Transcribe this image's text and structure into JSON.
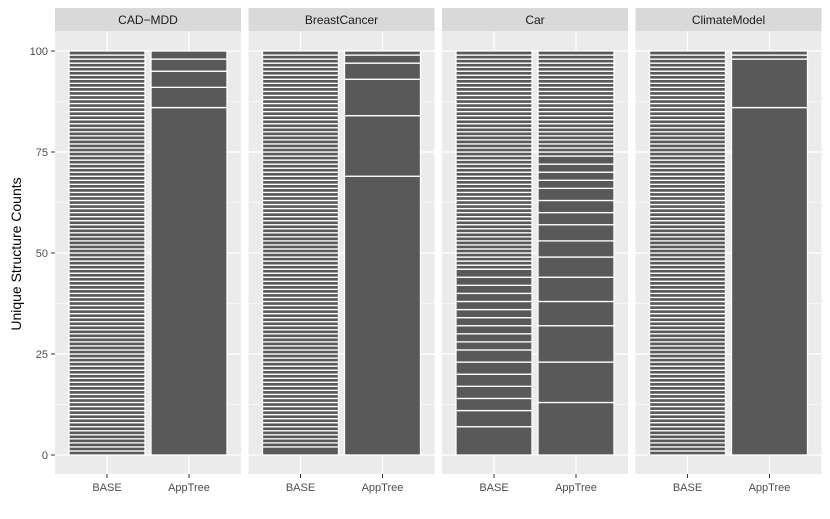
{
  "chart_data": {
    "type": "bar",
    "ylabel": "Unique Structure Counts",
    "xlabel": "",
    "ylim": [
      0,
      100
    ],
    "yticks": [
      0,
      25,
      50,
      75,
      100
    ],
    "categories": [
      "BASE",
      "AppTree"
    ],
    "grid": true,
    "colors": {
      "panel": "#ebebeb",
      "strip": "#d9d9d9",
      "bar": "#595959",
      "separator": "#ffffff",
      "grid": "#ffffff"
    },
    "panels": [
      {
        "title": "CAD−MDD",
        "bars": [
          {
            "category": "BASE",
            "total": 100,
            "segment_tops": [
              1,
              2,
              3,
              4,
              5,
              6,
              7,
              8,
              9,
              10,
              11,
              12,
              13,
              14,
              15,
              16,
              17,
              18,
              19,
              20,
              21,
              22,
              23,
              24,
              25,
              26,
              27,
              28,
              29,
              30,
              31,
              32,
              33,
              34,
              35,
              36,
              37,
              38,
              39,
              40,
              41,
              42,
              43,
              44,
              45,
              46,
              47,
              48,
              49,
              50,
              51,
              52,
              53,
              54,
              55,
              56,
              57,
              58,
              59,
              60,
              61,
              62,
              63,
              64,
              65,
              66,
              67,
              68,
              69,
              70,
              71,
              72,
              73,
              74,
              75,
              76,
              77,
              78,
              79,
              80,
              81,
              82,
              83,
              84,
              85,
              86,
              87,
              88,
              89,
              90,
              91,
              92,
              93,
              94,
              95,
              96,
              97,
              98,
              99,
              100
            ]
          },
          {
            "category": "AppTree",
            "total": 100,
            "segment_tops": [
              86,
              91,
              95,
              98,
              100
            ]
          }
        ]
      },
      {
        "title": "BreastCancer",
        "bars": [
          {
            "category": "BASE",
            "total": 100,
            "segment_tops": [
              2,
              3,
              4,
              5,
              6,
              7,
              8,
              9,
              10,
              11,
              12,
              13,
              14,
              15,
              16,
              17,
              18,
              19,
              20,
              21,
              22,
              23,
              24,
              25,
              26,
              27,
              28,
              29,
              30,
              31,
              32,
              33,
              34,
              35,
              36,
              37,
              38,
              39,
              40,
              41,
              42,
              43,
              44,
              45,
              46,
              47,
              48,
              49,
              50,
              51,
              52,
              53,
              54,
              55,
              56,
              57,
              58,
              59,
              60,
              61,
              62,
              63,
              64,
              65,
              66,
              67,
              68,
              69,
              70,
              71,
              72,
              73,
              74,
              75,
              76,
              77,
              78,
              79,
              80,
              81,
              82,
              83,
              84,
              85,
              86,
              87,
              88,
              89,
              90,
              91,
              92,
              93,
              94,
              95,
              96,
              97,
              98,
              99,
              100
            ]
          },
          {
            "category": "AppTree",
            "total": 100,
            "segment_tops": [
              69,
              84,
              93,
              97,
              99,
              100
            ]
          }
        ]
      },
      {
        "title": "Car",
        "bars": [
          {
            "category": "BASE",
            "total": 100,
            "segment_tops": [
              7,
              11,
              14,
              17,
              20,
              23,
              26,
              28,
              30,
              32,
              34,
              36,
              38,
              40,
              42,
              44,
              46,
              47,
              48,
              49,
              50,
              51,
              52,
              53,
              54,
              55,
              56,
              57,
              58,
              59,
              60,
              61,
              62,
              63,
              64,
              65,
              66,
              67,
              68,
              69,
              70,
              71,
              72,
              73,
              74,
              75,
              76,
              77,
              78,
              79,
              80,
              81,
              82,
              83,
              84,
              85,
              86,
              87,
              88,
              89,
              90,
              91,
              92,
              93,
              94,
              95,
              96,
              97,
              98,
              99,
              100
            ]
          },
          {
            "category": "AppTree",
            "total": 100,
            "segment_tops": [
              13,
              23,
              32,
              38,
              44,
              49,
              53,
              57,
              60,
              63,
              66,
              68,
              70,
              72,
              74,
              75,
              76,
              77,
              78,
              79,
              80,
              81,
              82,
              83,
              84,
              85,
              86,
              87,
              88,
              89,
              90,
              91,
              92,
              93,
              94,
              95,
              96,
              97,
              98,
              99,
              100
            ]
          }
        ]
      },
      {
        "title": "ClimateModel",
        "bars": [
          {
            "category": "BASE",
            "total": 100,
            "segment_tops": [
              1,
              2,
              3,
              4,
              5,
              6,
              7,
              8,
              9,
              10,
              11,
              12,
              13,
              14,
              15,
              16,
              17,
              18,
              19,
              20,
              21,
              22,
              23,
              24,
              25,
              26,
              27,
              28,
              29,
              30,
              31,
              32,
              33,
              34,
              35,
              36,
              37,
              38,
              39,
              40,
              41,
              42,
              43,
              44,
              45,
              46,
              47,
              48,
              49,
              50,
              51,
              52,
              53,
              54,
              55,
              56,
              57,
              58,
              59,
              60,
              61,
              62,
              63,
              64,
              65,
              66,
              67,
              68,
              69,
              70,
              71,
              72,
              73,
              74,
              75,
              76,
              77,
              78,
              79,
              80,
              81,
              82,
              83,
              84,
              85,
              86,
              87,
              88,
              89,
              90,
              91,
              92,
              93,
              94,
              95,
              96,
              97,
              98,
              99,
              100
            ]
          },
          {
            "category": "AppTree",
            "total": 100,
            "segment_tops": [
              86,
              98,
              99,
              100
            ]
          }
        ]
      }
    ]
  }
}
